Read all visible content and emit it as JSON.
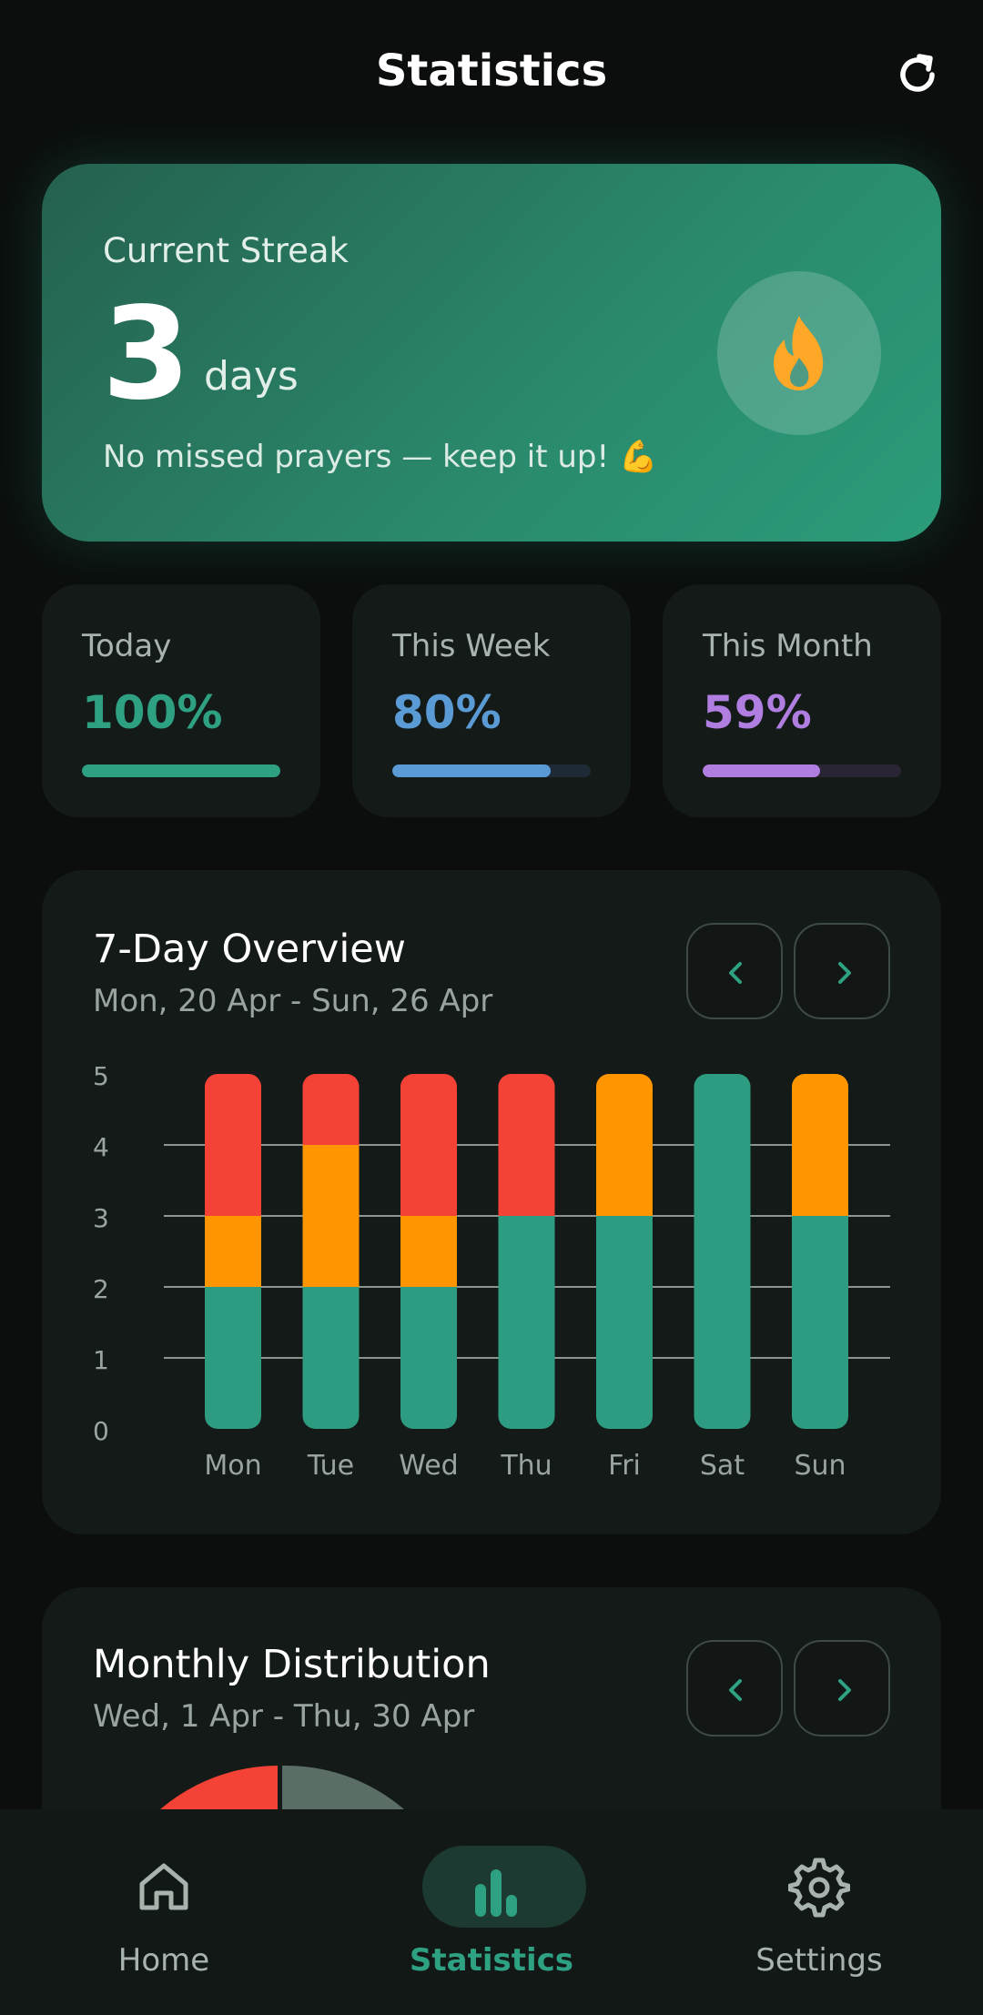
{
  "header": {
    "title": "Statistics",
    "refresh_icon": "refresh-icon"
  },
  "streak": {
    "label": "Current Streak",
    "value": "3",
    "unit": "days",
    "message": "No missed prayers — keep it up! 💪",
    "icon": "fire-icon"
  },
  "stats": [
    {
      "label": "Today",
      "value": "100%",
      "progress": 1.0,
      "color": "#2fa183"
    },
    {
      "label": "This Week",
      "value": "80%",
      "progress": 0.8,
      "color": "#5b9bd5"
    },
    {
      "label": "This Month",
      "value": "59%",
      "progress": 0.59,
      "color": "#b07ee0"
    }
  ],
  "overview": {
    "title": "7-Day Overview",
    "range": "Mon, 20 Apr - Sun, 26 Apr",
    "prev_icon": "chevron-left-icon",
    "next_icon": "chevron-right-icon"
  },
  "chart_data": {
    "type": "bar",
    "stacked": true,
    "categories": [
      "Mon",
      "Tue",
      "Wed",
      "Thu",
      "Fri",
      "Sat",
      "Sun"
    ],
    "series": [
      {
        "values": [
          2,
          2,
          2,
          3,
          3,
          5,
          3
        ],
        "color": "#2e9c80"
      },
      {
        "values": [
          1,
          2,
          1,
          0,
          2,
          0,
          2
        ],
        "color": "#ff9500"
      },
      {
        "values": [
          2,
          1,
          2,
          2,
          0,
          0,
          0
        ],
        "color": "#f44336"
      }
    ],
    "yticks": [
      "0",
      "1",
      "2",
      "3",
      "4",
      "5"
    ],
    "ylim": [
      0,
      5
    ],
    "grid": true
  },
  "monthly": {
    "title": "Monthly Distribution",
    "range": "Wed, 1 Apr - Thu, 30 Apr",
    "prev_icon": "chevron-left-icon",
    "next_icon": "chevron-right-icon"
  },
  "bottom_nav": [
    {
      "label": "Home",
      "icon": "home-icon",
      "active": false
    },
    {
      "label": "Statistics",
      "icon": "bar-chart-icon",
      "active": true
    },
    {
      "label": "Settings",
      "icon": "gear-icon",
      "active": false
    }
  ]
}
